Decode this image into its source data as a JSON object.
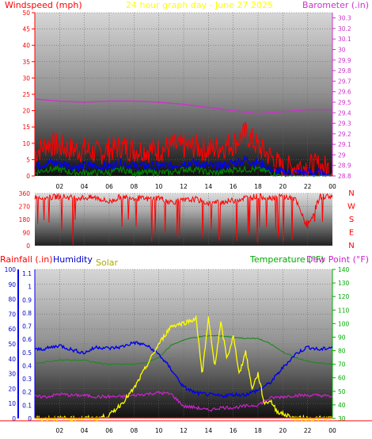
{
  "title": "24 hour graph day - June 27 2025",
  "colors": {
    "wind_gust": "#ff0000",
    "wind_avg": "#0000ff",
    "wind_low": "#008800",
    "barometer": "#cc33cc",
    "wind_dir": "#ff0000",
    "temperature": "#228822",
    "dew_point": "#cc22cc",
    "humidity": "#0000ee",
    "solar": "#ffff00",
    "solar_label": "#aaaa00",
    "rain": "#ff0000",
    "axis_blue": "#0000cc",
    "axis_green": "#00aa00"
  },
  "panel1": {
    "left_label": "Windspeed (mph)",
    "right_label": "Barometer (.in)",
    "y_ticks": [
      "50",
      "45",
      "40",
      "35",
      "30",
      "25",
      "20",
      "15",
      "10",
      "5",
      "0"
    ],
    "y2_ticks": [
      "30.3",
      "30.2",
      "30.1",
      "30",
      "29.9",
      "29.8",
      "29.7",
      "29.6",
      "29.5",
      "29.4",
      "29.3",
      "29.2",
      "29.1",
      "29",
      "28.9",
      "28.8"
    ]
  },
  "panel2": {
    "y_ticks": [
      "360",
      "270",
      "180",
      "90",
      "0"
    ],
    "compass": [
      "N",
      "W",
      "S",
      "E",
      "N"
    ]
  },
  "panel3": {
    "rain_label": "Rainfall (.in)",
    "humidity_label": "Humidity",
    "solar_label": "Solar",
    "temp_label": "Temperature (°F)",
    "dew_label": "Dew Point (°F)",
    "humidity_ticks": [
      "100",
      "90",
      "80",
      "70",
      "60",
      "50",
      "40",
      "30",
      "20",
      "10",
      "0"
    ],
    "rain_ticks": [
      "1.1",
      "1",
      "0.9",
      "0.8",
      "0.7",
      "0.6",
      "0.5",
      "0.4",
      "0.3",
      "0.2",
      "0.1",
      "0"
    ],
    "temp_ticks": [
      "140",
      "130",
      "120",
      "110",
      "100",
      "90",
      "80",
      "70",
      "60",
      "50",
      "40",
      "30"
    ]
  },
  "x_ticks": [
    "02",
    "04",
    "06",
    "08",
    "10",
    "12",
    "14",
    "16",
    "18",
    "20",
    "22",
    "00"
  ],
  "chart_data": [
    {
      "type": "line",
      "title": "24 hour graph day - June 27 2025",
      "xlabel": "",
      "ylabel": "Windspeed (mph)",
      "y2label": "Barometer (.in)",
      "xlim": [
        0,
        24
      ],
      "ylim": [
        0,
        50
      ],
      "y2lim": [
        28.8,
        30.35
      ],
      "grid": true,
      "series": [
        {
          "name": "Wind gust",
          "axis": "left",
          "x": [
            0,
            1,
            2,
            3,
            4,
            5,
            6,
            7,
            8,
            9,
            10,
            11,
            12,
            13,
            14,
            15,
            16,
            17,
            18,
            19,
            20,
            21,
            22,
            23,
            24
          ],
          "values": [
            7,
            10,
            9,
            8,
            8,
            7,
            8,
            9,
            8,
            8,
            8,
            9,
            9,
            9,
            8,
            9,
            10,
            13,
            9,
            6,
            2,
            3,
            3,
            3,
            2
          ]
        },
        {
          "name": "Wind average",
          "axis": "left",
          "x": [
            0,
            1,
            2,
            3,
            4,
            5,
            6,
            7,
            8,
            9,
            10,
            11,
            12,
            13,
            14,
            15,
            16,
            17,
            18,
            19,
            20,
            21,
            22,
            23,
            24
          ],
          "values": [
            3,
            4,
            4,
            3,
            3,
            3,
            3,
            4,
            3,
            3,
            3,
            3,
            4,
            4,
            3,
            3,
            4,
            5,
            4,
            2,
            1,
            1,
            1,
            1,
            0
          ]
        },
        {
          "name": "Wind low",
          "axis": "left",
          "x": [
            0,
            1,
            2,
            3,
            4,
            5,
            6,
            7,
            8,
            9,
            10,
            11,
            12,
            13,
            14,
            15,
            16,
            17,
            18,
            19,
            20,
            21,
            22,
            23,
            24
          ],
          "values": [
            1,
            2,
            2,
            1,
            1,
            1,
            1,
            2,
            1,
            1,
            1,
            1,
            2,
            2,
            1,
            1,
            2,
            2,
            2,
            1,
            0,
            0,
            0,
            0,
            0
          ]
        },
        {
          "name": "Barometer",
          "axis": "right",
          "x": [
            0,
            2,
            4,
            6,
            8,
            10,
            12,
            14,
            16,
            18,
            19,
            20,
            22,
            24
          ],
          "values": [
            29.53,
            29.51,
            29.5,
            29.51,
            29.51,
            29.5,
            29.48,
            29.45,
            29.42,
            29.39,
            29.4,
            29.41,
            29.43,
            29.43
          ]
        }
      ]
    },
    {
      "type": "line",
      "title": "",
      "xlabel": "",
      "ylabel": "",
      "xlim": [
        0,
        24
      ],
      "ylim": [
        0,
        360
      ],
      "series": [
        {
          "name": "Wind direction",
          "x": [
            0,
            1,
            2,
            3,
            4,
            5,
            6,
            7,
            8,
            9,
            10,
            11,
            12,
            13,
            14,
            15,
            16,
            17,
            18,
            19,
            20,
            21,
            22,
            23,
            24
          ],
          "values": [
            335,
            330,
            340,
            330,
            330,
            330,
            300,
            340,
            330,
            320,
            330,
            300,
            310,
            320,
            290,
            300,
            310,
            330,
            340,
            330,
            340,
            320,
            120,
            340,
            340
          ]
        }
      ]
    },
    {
      "type": "line",
      "title": "",
      "xlabel": "",
      "ylabel": "Humidity",
      "y2label": "Temperature (°F)",
      "xlim": [
        0,
        24
      ],
      "ylim": [
        0,
        100
      ],
      "y2lim": [
        30,
        140
      ],
      "grid": true,
      "series": [
        {
          "name": "Humidity",
          "axis": "left",
          "x": [
            0,
            1,
            2,
            3,
            4,
            5,
            6,
            7,
            8,
            9,
            10,
            11,
            12,
            13,
            14,
            15,
            16,
            17,
            18,
            19,
            20,
            21,
            22,
            23,
            24
          ],
          "values": [
            46,
            47,
            49,
            46,
            44,
            48,
            47,
            48,
            51,
            49,
            43,
            33,
            21,
            17,
            16,
            15,
            16,
            16,
            19,
            24,
            34,
            43,
            48,
            46,
            48
          ]
        },
        {
          "name": "Temperature",
          "axis": "right",
          "x": [
            0,
            1,
            2,
            3,
            4,
            5,
            6,
            7,
            8,
            9,
            10,
            11,
            12,
            13,
            14,
            15,
            16,
            17,
            18,
            19,
            20,
            21,
            22,
            23,
            24
          ],
          "values": [
            70,
            72,
            73,
            73,
            73,
            71,
            70,
            70,
            70,
            71,
            75,
            84,
            88,
            90,
            91,
            91,
            90,
            89,
            89,
            85,
            79,
            75,
            72,
            71,
            70
          ]
        },
        {
          "name": "Dew Point",
          "axis": "right",
          "x": [
            0,
            1,
            2,
            3,
            4,
            5,
            6,
            7,
            8,
            9,
            10,
            11,
            12,
            13,
            14,
            15,
            16,
            17,
            18,
            19,
            20,
            21,
            22,
            23,
            24
          ],
          "values": [
            46,
            46,
            48,
            47,
            47,
            46,
            46,
            46,
            47,
            48,
            49,
            48,
            39,
            38,
            36,
            38,
            38,
            39,
            40,
            45,
            46,
            47,
            47,
            47,
            46
          ]
        },
        {
          "name": "Solar",
          "axis": "left",
          "x": [
            0,
            5,
            6,
            7,
            8,
            9,
            10,
            11,
            12,
            13,
            13.5,
            14,
            14.5,
            15,
            15.5,
            16,
            16.5,
            17,
            17.5,
            18,
            18.5,
            19,
            19.5,
            20,
            21,
            24
          ],
          "values": [
            0,
            0,
            2,
            10,
            20,
            35,
            50,
            62,
            64,
            67,
            30,
            67,
            35,
            64,
            40,
            55,
            30,
            45,
            20,
            30,
            10,
            12,
            5,
            3,
            0,
            0
          ]
        },
        {
          "name": "Rainfall",
          "axis": "left",
          "x": [
            0,
            24
          ],
          "values": [
            0,
            0
          ]
        }
      ]
    }
  ]
}
